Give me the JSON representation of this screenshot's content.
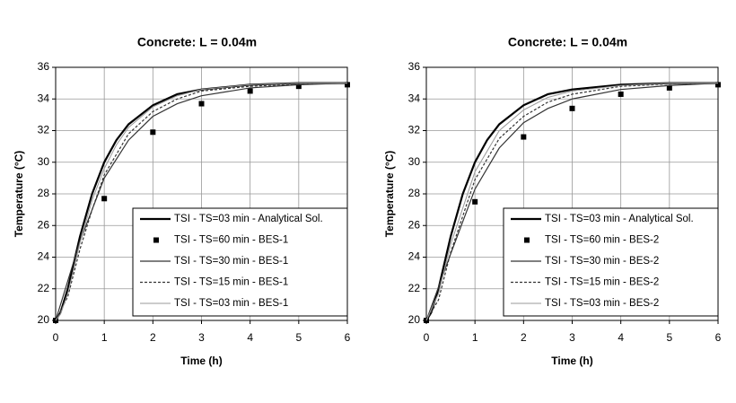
{
  "chart_data": [
    {
      "type": "line",
      "title": "Concrete: L = 0.04m",
      "xlabel": "Time (h)",
      "ylabel": "Temperature (°C)",
      "xlim": [
        0,
        6
      ],
      "ylim": [
        20,
        36
      ],
      "xticks": [
        0,
        1,
        2,
        3,
        4,
        5,
        6
      ],
      "yticks": [
        20,
        22,
        24,
        26,
        28,
        30,
        32,
        34,
        36
      ],
      "grid": true,
      "legend": "lower right",
      "series": [
        {
          "name": "TSI - TS=03 min - Analytical Sol.",
          "color": "#000000",
          "linestyle": "solid",
          "linewidth": 2.2,
          "x": [
            0,
            0.1,
            0.25,
            0.5,
            0.75,
            1,
            1.25,
            1.5,
            2,
            2.5,
            3,
            4,
            5,
            6
          ],
          "values": [
            20,
            20.5,
            22,
            25.3,
            28,
            30,
            31.4,
            32.4,
            33.6,
            34.3,
            34.6,
            34.9,
            35,
            35
          ]
        },
        {
          "name": "TSI - TS=60 min - BES-1",
          "color": "#000000",
          "linestyle": "none",
          "marker": "square",
          "x": [
            0,
            1,
            2,
            3,
            4,
            5,
            6
          ],
          "values": [
            20,
            27.7,
            31.9,
            33.7,
            34.5,
            34.8,
            34.9
          ]
        },
        {
          "name": "TSI - TS=30 min - BES-1",
          "color": "#333333",
          "linestyle": "solid",
          "linewidth": 1.2,
          "x": [
            0,
            0.5,
            1,
            1.5,
            2,
            2.5,
            3,
            4,
            5,
            6
          ],
          "values": [
            20,
            25,
            29,
            31.4,
            32.9,
            33.7,
            34.2,
            34.7,
            34.9,
            35
          ]
        },
        {
          "name": "TSI - TS=15 min - BES-1",
          "color": "#333333",
          "linestyle": "dotted",
          "linewidth": 1.2,
          "x": [
            0,
            0.25,
            0.5,
            0.75,
            1,
            1.5,
            2,
            2.5,
            3,
            4,
            5,
            6
          ],
          "values": [
            20,
            21.5,
            24.5,
            27,
            29.2,
            31.8,
            33.2,
            34,
            34.5,
            34.8,
            34.95,
            35
          ]
        },
        {
          "name": "TSI - TS=03 min - BES-1",
          "color": "#999999",
          "linestyle": "solid",
          "linewidth": 1,
          "x": [
            0,
            0.1,
            0.25,
            0.5,
            0.75,
            1,
            1.25,
            1.5,
            2,
            2.5,
            3,
            4,
            5,
            6
          ],
          "values": [
            20,
            20.4,
            21.7,
            24.9,
            27.6,
            29.6,
            31.1,
            32.2,
            33.5,
            34.2,
            34.6,
            34.9,
            35,
            35
          ]
        }
      ]
    },
    {
      "type": "line",
      "title": "Concrete: L = 0.04m",
      "xlabel": "Time (h)",
      "ylabel": "Temperature (°C)",
      "xlim": [
        0,
        6
      ],
      "ylim": [
        20,
        36
      ],
      "xticks": [
        0,
        1,
        2,
        3,
        4,
        5,
        6
      ],
      "yticks": [
        20,
        22,
        24,
        26,
        28,
        30,
        32,
        34,
        36
      ],
      "grid": true,
      "legend": "lower right",
      "series": [
        {
          "name": "TSI - TS=03 min - Analytical Sol.",
          "color": "#000000",
          "linestyle": "solid",
          "linewidth": 2.2,
          "x": [
            0,
            0.1,
            0.25,
            0.5,
            0.75,
            1,
            1.25,
            1.5,
            2,
            2.5,
            3,
            4,
            5,
            6
          ],
          "values": [
            20,
            20.5,
            22,
            25.3,
            28,
            30,
            31.4,
            32.4,
            33.6,
            34.3,
            34.6,
            34.9,
            35,
            35
          ]
        },
        {
          "name": "TSI - TS=60 min - BES-2",
          "color": "#000000",
          "linestyle": "none",
          "marker": "square",
          "x": [
            0,
            1,
            2,
            3,
            4,
            5,
            6
          ],
          "values": [
            20,
            27.5,
            31.6,
            33.4,
            34.3,
            34.7,
            34.9
          ]
        },
        {
          "name": "TSI - TS=30 min - BES-2",
          "color": "#333333",
          "linestyle": "solid",
          "linewidth": 1.2,
          "x": [
            0,
            0.5,
            1,
            1.5,
            2,
            2.5,
            3,
            4,
            5,
            6
          ],
          "values": [
            20,
            24.2,
            28.3,
            30.9,
            32.5,
            33.4,
            34,
            34.6,
            34.85,
            35
          ]
        },
        {
          "name": "TSI - TS=15 min - BES-2",
          "color": "#333333",
          "linestyle": "dotted",
          "linewidth": 1.2,
          "x": [
            0,
            0.25,
            0.5,
            1,
            1.5,
            2,
            2.5,
            3,
            4,
            5,
            6
          ],
          "values": [
            20,
            21.3,
            24.3,
            28.9,
            31.5,
            32.9,
            33.8,
            34.3,
            34.8,
            34.95,
            35
          ]
        },
        {
          "name": "TSI - TS=03 min - BES-2",
          "color": "#999999",
          "linestyle": "solid",
          "linewidth": 1,
          "x": [
            0,
            0.25,
            0.5,
            1,
            1.5,
            2,
            2.5,
            3,
            4,
            5,
            6
          ],
          "values": [
            20,
            21.7,
            24.8,
            29.4,
            32,
            33.3,
            34.1,
            34.5,
            34.85,
            35,
            35
          ]
        }
      ]
    }
  ]
}
